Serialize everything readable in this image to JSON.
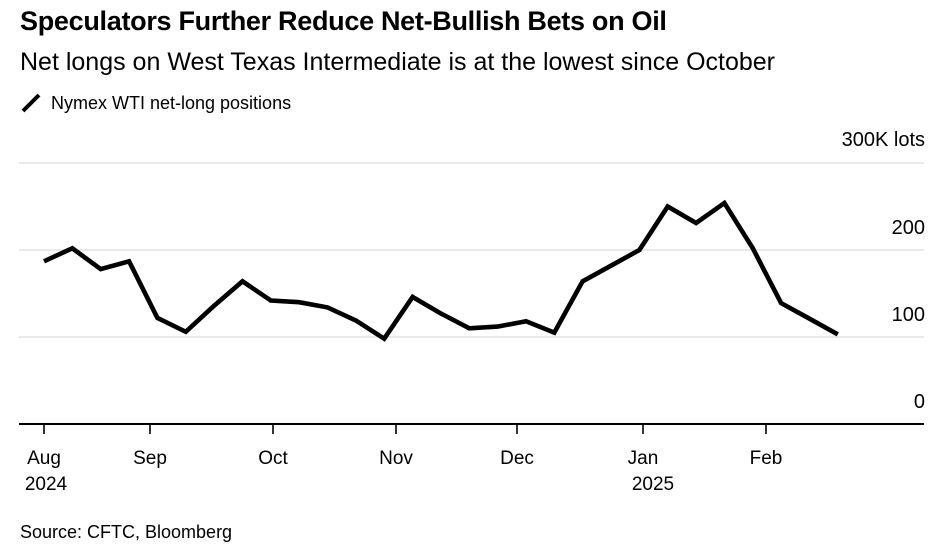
{
  "header": {
    "title": "Speculators Further Reduce Net-Bullish Bets on Oil",
    "subtitle": "Net longs on West Texas Intermediate is at the lowest since October"
  },
  "legend": {
    "series_label": "Nymex WTI net-long positions"
  },
  "source": "Source: CFTC, Bloomberg",
  "colors": {
    "line": "#000000",
    "gridline": "#dcdcdc",
    "axis": "#000000",
    "text": "#000000",
    "background": "#ffffff"
  },
  "chart_data": {
    "type": "line",
    "title": "Speculators Further Reduce Net-Bullish Bets on Oil",
    "subtitle": "Net longs on West Texas Intermediate is at the lowest since October",
    "unit": "K lots",
    "ylim": [
      0,
      300
    ],
    "grid": "horizontal",
    "legend_position": "top-left",
    "y_ticks": [
      {
        "value": 300,
        "label": "300K lots"
      },
      {
        "value": 200,
        "label": "200"
      },
      {
        "value": 100,
        "label": "100"
      },
      {
        "value": 0,
        "label": "0"
      }
    ],
    "x_ticks": [
      {
        "label": "Aug",
        "year_label": "2024"
      },
      {
        "label": "Sep",
        "year_label": ""
      },
      {
        "label": "Oct",
        "year_label": ""
      },
      {
        "label": "Nov",
        "year_label": ""
      },
      {
        "label": "Dec",
        "year_label": ""
      },
      {
        "label": "Jan",
        "year_label": "2025"
      },
      {
        "label": "Feb",
        "year_label": ""
      }
    ],
    "x": [
      "2024-08-06",
      "2024-08-13",
      "2024-08-20",
      "2024-08-27",
      "2024-09-03",
      "2024-09-10",
      "2024-09-17",
      "2024-09-24",
      "2024-10-01",
      "2024-10-08",
      "2024-10-15",
      "2024-10-22",
      "2024-10-29",
      "2024-11-05",
      "2024-11-12",
      "2024-11-19",
      "2024-11-26",
      "2024-12-03",
      "2024-12-10",
      "2024-12-17",
      "2024-12-24",
      "2024-12-31",
      "2025-01-07",
      "2025-01-14",
      "2025-01-21",
      "2025-01-28",
      "2025-02-04",
      "2025-02-11",
      "2025-02-18"
    ],
    "series": [
      {
        "name": "Nymex WTI net-long positions",
        "values": [
          187,
          202,
          178,
          187,
          122,
          106,
          136,
          164,
          142,
          140,
          134,
          119,
          98,
          146,
          127,
          110,
          112,
          118,
          105,
          164,
          182,
          200,
          250,
          231,
          254,
          202,
          139,
          121,
          103
        ]
      }
    ]
  }
}
